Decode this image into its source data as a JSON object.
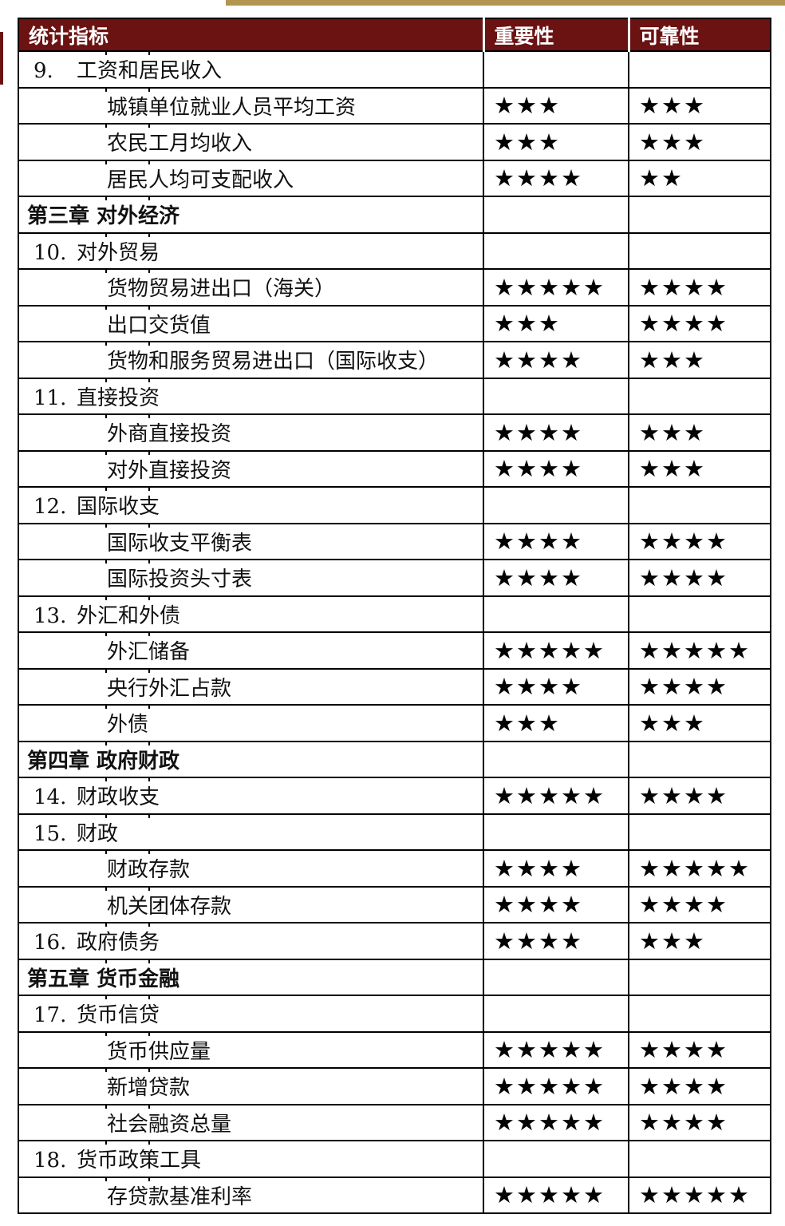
{
  "colors": {
    "header_bg": "#6B1212",
    "gold_bar": "#B2954F",
    "border": "#000000"
  },
  "star_char": "★",
  "columns": {
    "indicator": "统计指标",
    "importance": "重要性",
    "reliability": "可靠性"
  },
  "rows": [
    {
      "type": "section",
      "num": "9.",
      "label": "工资和居民收入",
      "importance": null,
      "reliability": null
    },
    {
      "type": "item",
      "num": null,
      "label": "城镇单位就业人员平均工资",
      "importance": 3,
      "reliability": 3
    },
    {
      "type": "item",
      "num": null,
      "label": "农民工月均收入",
      "importance": 3,
      "reliability": 3
    },
    {
      "type": "item",
      "num": null,
      "label": "居民人均可支配收入",
      "importance": 4,
      "reliability": 2
    },
    {
      "type": "chapter",
      "num": null,
      "label": "第三章 对外经济",
      "importance": null,
      "reliability": null
    },
    {
      "type": "section",
      "num": "10.",
      "label": "对外贸易",
      "importance": null,
      "reliability": null
    },
    {
      "type": "item",
      "num": null,
      "label": "货物贸易进出口（海关）",
      "importance": 5,
      "reliability": 4
    },
    {
      "type": "item",
      "num": null,
      "label": "出口交货值",
      "importance": 3,
      "reliability": 4
    },
    {
      "type": "item",
      "num": null,
      "label": "货物和服务贸易进出口（国际收支）",
      "importance": 4,
      "reliability": 3
    },
    {
      "type": "section",
      "num": "11.",
      "label": "直接投资",
      "importance": null,
      "reliability": null
    },
    {
      "type": "item",
      "num": null,
      "label": "外商直接投资",
      "importance": 4,
      "reliability": 3
    },
    {
      "type": "item",
      "num": null,
      "label": "对外直接投资",
      "importance": 4,
      "reliability": 3
    },
    {
      "type": "section",
      "num": "12.",
      "label": "国际收支",
      "importance": null,
      "reliability": null
    },
    {
      "type": "item",
      "num": null,
      "label": "国际收支平衡表",
      "importance": 4,
      "reliability": 4
    },
    {
      "type": "item",
      "num": null,
      "label": "国际投资头寸表",
      "importance": 4,
      "reliability": 4
    },
    {
      "type": "section",
      "num": "13.",
      "label": "外汇和外债",
      "importance": null,
      "reliability": null
    },
    {
      "type": "item",
      "num": null,
      "label": "外汇储备",
      "importance": 5,
      "reliability": 5
    },
    {
      "type": "item",
      "num": null,
      "label": "央行外汇占款",
      "importance": 4,
      "reliability": 4
    },
    {
      "type": "item",
      "num": null,
      "label": "外债",
      "importance": 3,
      "reliability": 3
    },
    {
      "type": "chapter",
      "num": null,
      "label": "第四章 政府财政",
      "importance": null,
      "reliability": null
    },
    {
      "type": "section",
      "num": "14.",
      "label": "财政收支",
      "importance": 5,
      "reliability": 4
    },
    {
      "type": "section",
      "num": "15.",
      "label": "财政",
      "importance": null,
      "reliability": null
    },
    {
      "type": "item",
      "num": null,
      "label": "财政存款",
      "importance": 4,
      "reliability": 5
    },
    {
      "type": "item",
      "num": null,
      "label": "机关团体存款",
      "importance": 4,
      "reliability": 4
    },
    {
      "type": "section",
      "num": "16.",
      "label": "政府债务",
      "importance": 4,
      "reliability": 3
    },
    {
      "type": "chapter",
      "num": null,
      "label": "第五章 货币金融",
      "importance": null,
      "reliability": null
    },
    {
      "type": "section",
      "num": "17.",
      "label": "货币信贷",
      "importance": null,
      "reliability": null
    },
    {
      "type": "item",
      "num": null,
      "label": "货币供应量",
      "importance": 5,
      "reliability": 4
    },
    {
      "type": "item",
      "num": null,
      "label": "新增贷款",
      "importance": 5,
      "reliability": 4
    },
    {
      "type": "item",
      "num": null,
      "label": "社会融资总量",
      "importance": 5,
      "reliability": 4
    },
    {
      "type": "section",
      "num": "18.",
      "label": "货币政策工具",
      "importance": null,
      "reliability": null
    },
    {
      "type": "item",
      "num": null,
      "label": "存贷款基准利率",
      "importance": 5,
      "reliability": 5
    }
  ]
}
